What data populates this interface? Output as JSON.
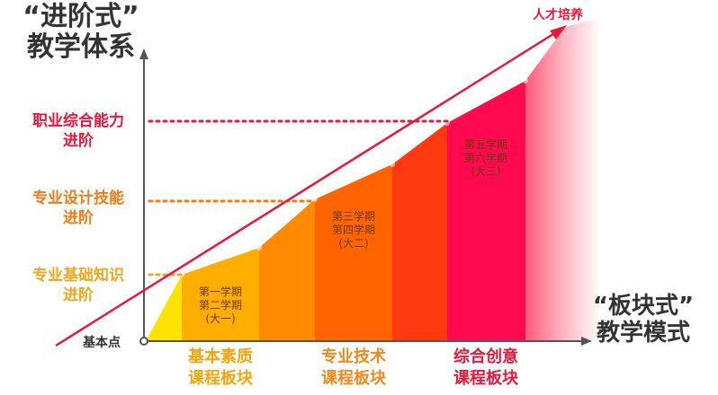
{
  "title_left": {
    "line1": "“进阶式”",
    "line2": "教学体系"
  },
  "title_right": {
    "line1": "“板块式”",
    "line2": "教学模式"
  },
  "y_levels": [
    {
      "line1": "职业综合能力",
      "line2": "进阶",
      "color": "#e8173c"
    },
    {
      "line1": "专业设计技能",
      "line2": "进阶",
      "color": "#f47a14"
    },
    {
      "line1": "专业基础知识",
      "line2": "进阶",
      "color": "#f2a51e"
    }
  ],
  "origin_label": "基本点",
  "arrow_label": "人才培养",
  "semesters": [
    {
      "l1": "第一学期",
      "l2": "第二学期",
      "l3": "(大一)"
    },
    {
      "l1": "第三学期",
      "l2": "第四学期",
      "l3": "(大二)"
    },
    {
      "l1": "第五学期",
      "l2": "第六学期",
      "l3": "(大三)"
    }
  ],
  "modules": [
    {
      "line1": "基本素质",
      "line2": "课程板块",
      "color": "#f5a50c"
    },
    {
      "line1": "专业技术",
      "line2": "课程板块",
      "color": "#f2891e"
    },
    {
      "line1": "综合创意",
      "line2": "课程板块",
      "color": "#e8173c"
    }
  ],
  "colors": {
    "yellow": "#ffe300",
    "amber": "#ffae00",
    "orange": "#ff8a00",
    "orange_red": "#ff5a00",
    "red_orange": "#ff3a10",
    "crimson": "#ff0a50",
    "axis": "#555555",
    "arrow": "#e8173c"
  }
}
